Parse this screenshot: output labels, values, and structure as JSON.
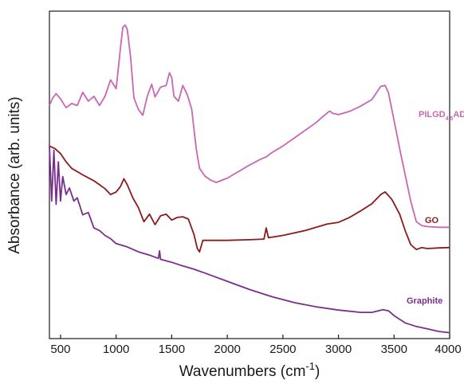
{
  "chart_data": {
    "type": "line",
    "xlabel": "Wavenumbers (cm-1)",
    "xlabel_base": "Wavenumbers (cm",
    "xlabel_sup": "-1",
    "xlabel_end": ")",
    "ylabel": "Absorbance (arb. units)",
    "xlim": [
      400,
      4000
    ],
    "ylim": [
      0,
      1
    ],
    "x_ticks": [
      500,
      1000,
      1500,
      2000,
      2500,
      3000,
      3500,
      4000
    ],
    "x_tick_labels": [
      "500",
      "1000",
      "1500",
      "2000",
      "2500",
      "3000",
      "3500",
      "4000"
    ],
    "y_ticks_shown": false,
    "grid": false,
    "series": [
      {
        "name": "PILGD4.5AD",
        "label_main": "PILGD",
        "label_sub": "4.5",
        "label_end": "AD",
        "color": "#c966b6",
        "points": [
          [
            400,
            0.712
          ],
          [
            430,
            0.735
          ],
          [
            460,
            0.748
          ],
          [
            500,
            0.732
          ],
          [
            550,
            0.705
          ],
          [
            600,
            0.718
          ],
          [
            650,
            0.712
          ],
          [
            700,
            0.752
          ],
          [
            750,
            0.725
          ],
          [
            800,
            0.74
          ],
          [
            850,
            0.712
          ],
          [
            900,
            0.74
          ],
          [
            950,
            0.79
          ],
          [
            1000,
            0.763
          ],
          [
            1040,
            0.89
          ],
          [
            1060,
            0.95
          ],
          [
            1080,
            0.958
          ],
          [
            1100,
            0.945
          ],
          [
            1130,
            0.86
          ],
          [
            1160,
            0.735
          ],
          [
            1200,
            0.7
          ],
          [
            1240,
            0.682
          ],
          [
            1280,
            0.74
          ],
          [
            1320,
            0.777
          ],
          [
            1350,
            0.738
          ],
          [
            1400,
            0.768
          ],
          [
            1450,
            0.773
          ],
          [
            1480,
            0.812
          ],
          [
            1500,
            0.797
          ],
          [
            1520,
            0.74
          ],
          [
            1560,
            0.725
          ],
          [
            1600,
            0.773
          ],
          [
            1640,
            0.745
          ],
          [
            1680,
            0.7
          ],
          [
            1720,
            0.58
          ],
          [
            1750,
            0.52
          ],
          [
            1800,
            0.496
          ],
          [
            1850,
            0.484
          ],
          [
            1900,
            0.477
          ],
          [
            2000,
            0.49
          ],
          [
            2100,
            0.51
          ],
          [
            2200,
            0.53
          ],
          [
            2300,
            0.548
          ],
          [
            2350,
            0.555
          ],
          [
            2400,
            0.568
          ],
          [
            2500,
            0.588
          ],
          [
            2600,
            0.612
          ],
          [
            2700,
            0.636
          ],
          [
            2800,
            0.66
          ],
          [
            2850,
            0.675
          ],
          [
            2920,
            0.695
          ],
          [
            2950,
            0.688
          ],
          [
            3000,
            0.684
          ],
          [
            3100,
            0.694
          ],
          [
            3200,
            0.71
          ],
          [
            3300,
            0.73
          ],
          [
            3380,
            0.77
          ],
          [
            3420,
            0.773
          ],
          [
            3450,
            0.75
          ],
          [
            3500,
            0.666
          ],
          [
            3550,
            0.58
          ],
          [
            3600,
            0.5
          ],
          [
            3650,
            0.42
          ],
          [
            3700,
            0.357
          ],
          [
            3750,
            0.345
          ],
          [
            3800,
            0.342
          ],
          [
            3900,
            0.34
          ],
          [
            4000,
            0.34
          ]
        ]
      },
      {
        "name": "GO",
        "label_main": "GO",
        "color": "#8b1a1a",
        "points": [
          [
            400,
            0.588
          ],
          [
            450,
            0.58
          ],
          [
            500,
            0.565
          ],
          [
            550,
            0.54
          ],
          [
            600,
            0.52
          ],
          [
            700,
            0.5
          ],
          [
            800,
            0.482
          ],
          [
            900,
            0.458
          ],
          [
            950,
            0.44
          ],
          [
            1000,
            0.448
          ],
          [
            1040,
            0.465
          ],
          [
            1070,
            0.488
          ],
          [
            1100,
            0.47
          ],
          [
            1150,
            0.43
          ],
          [
            1200,
            0.4
          ],
          [
            1250,
            0.357
          ],
          [
            1300,
            0.38
          ],
          [
            1350,
            0.348
          ],
          [
            1400,
            0.375
          ],
          [
            1450,
            0.38
          ],
          [
            1500,
            0.362
          ],
          [
            1550,
            0.37
          ],
          [
            1600,
            0.372
          ],
          [
            1650,
            0.365
          ],
          [
            1700,
            0.318
          ],
          [
            1730,
            0.275
          ],
          [
            1750,
            0.265
          ],
          [
            1780,
            0.3
          ],
          [
            1850,
            0.3
          ],
          [
            2000,
            0.3
          ],
          [
            2200,
            0.302
          ],
          [
            2330,
            0.304
          ],
          [
            2350,
            0.338
          ],
          [
            2370,
            0.308
          ],
          [
            2500,
            0.315
          ],
          [
            2700,
            0.33
          ],
          [
            2900,
            0.35
          ],
          [
            3000,
            0.355
          ],
          [
            3100,
            0.37
          ],
          [
            3200,
            0.39
          ],
          [
            3300,
            0.412
          ],
          [
            3380,
            0.44
          ],
          [
            3420,
            0.448
          ],
          [
            3480,
            0.425
          ],
          [
            3550,
            0.38
          ],
          [
            3600,
            0.33
          ],
          [
            3650,
            0.287
          ],
          [
            3700,
            0.272
          ],
          [
            3750,
            0.278
          ],
          [
            3800,
            0.275
          ],
          [
            3900,
            0.277
          ],
          [
            4000,
            0.278
          ]
        ]
      },
      {
        "name": "Graphite",
        "label_main": "Graphite",
        "color": "#7b2d8e",
        "points": [
          [
            400,
            0.59
          ],
          [
            420,
            0.42
          ],
          [
            440,
            0.575
          ],
          [
            460,
            0.41
          ],
          [
            480,
            0.54
          ],
          [
            500,
            0.42
          ],
          [
            520,
            0.495
          ],
          [
            550,
            0.44
          ],
          [
            580,
            0.46
          ],
          [
            620,
            0.42
          ],
          [
            650,
            0.43
          ],
          [
            700,
            0.378
          ],
          [
            750,
            0.385
          ],
          [
            800,
            0.338
          ],
          [
            850,
            0.33
          ],
          [
            900,
            0.315
          ],
          [
            950,
            0.305
          ],
          [
            1000,
            0.29
          ],
          [
            1100,
            0.28
          ],
          [
            1200,
            0.265
          ],
          [
            1300,
            0.255
          ],
          [
            1380,
            0.245
          ],
          [
            1390,
            0.268
          ],
          [
            1400,
            0.242
          ],
          [
            1500,
            0.233
          ],
          [
            1600,
            0.222
          ],
          [
            1700,
            0.212
          ],
          [
            1800,
            0.2
          ],
          [
            2000,
            0.175
          ],
          [
            2200,
            0.15
          ],
          [
            2400,
            0.128
          ],
          [
            2600,
            0.11
          ],
          [
            2800,
            0.097
          ],
          [
            3000,
            0.087
          ],
          [
            3200,
            0.08
          ],
          [
            3300,
            0.08
          ],
          [
            3400,
            0.088
          ],
          [
            3450,
            0.085
          ],
          [
            3500,
            0.07
          ],
          [
            3600,
            0.048
          ],
          [
            3700,
            0.037
          ],
          [
            3800,
            0.03
          ],
          [
            3900,
            0.022
          ],
          [
            4000,
            0.018
          ]
        ]
      }
    ]
  }
}
